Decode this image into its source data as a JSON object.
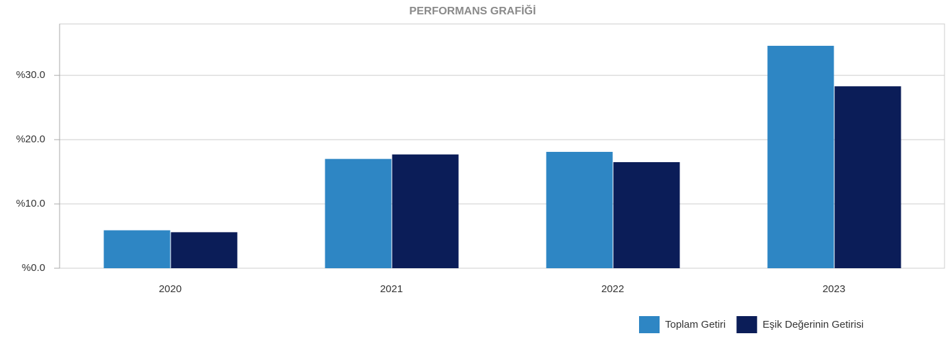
{
  "chart_data": {
    "type": "bar",
    "title": "PERFORMANS GRAFİĞİ",
    "categories": [
      "2020",
      "2021",
      "2022",
      "2023"
    ],
    "series": [
      {
        "name": "Toplam Getiri",
        "color": "#2e86c4",
        "values": [
          5.9,
          17.0,
          18.1,
          34.6
        ]
      },
      {
        "name": "Eşik Değerinin Getirisi",
        "color": "#0b1d58",
        "values": [
          5.6,
          17.7,
          16.5,
          28.3
        ]
      }
    ],
    "ylim": [
      0,
      38
    ],
    "yticks": [
      {
        "value": 0,
        "label": "%0.0"
      },
      {
        "value": 10,
        "label": "%10.0"
      },
      {
        "value": 20,
        "label": "%20.0"
      },
      {
        "value": 30,
        "label": "%30.0"
      }
    ],
    "grid": true,
    "legend": "bottom-right"
  }
}
